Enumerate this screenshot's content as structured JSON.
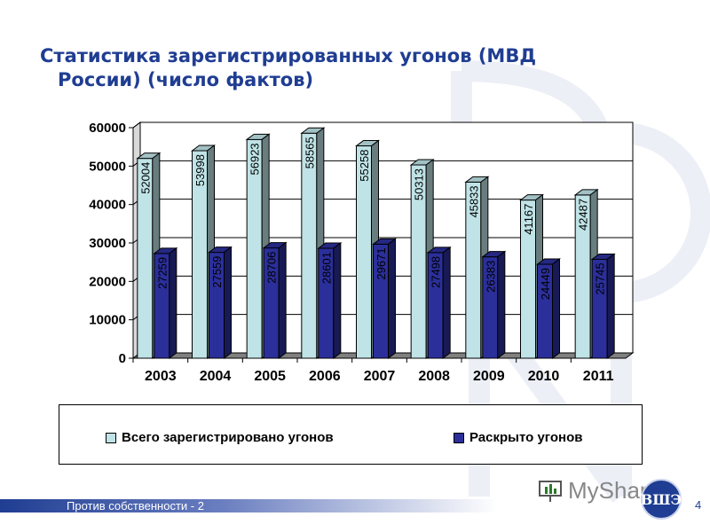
{
  "slide": {
    "title_line1": "Статистика зарегистрированных угонов (МВД",
    "title_line2": "России) (число фактов)",
    "footer": "Против собственности - 2",
    "page_number": "4",
    "brand": "MyShared",
    "emblem_text": "ВШЭ"
  },
  "colors": {
    "title": "#1f3d92",
    "series1": "#bfe3e6",
    "series2": "#2b2f9a",
    "plot_bg": "#ffffff"
  },
  "chart_data": {
    "type": "bar",
    "categories": [
      "2003",
      "2004",
      "2005",
      "2006",
      "2007",
      "2008",
      "2009",
      "2010",
      "2011"
    ],
    "series": [
      {
        "name": "Всего зарегистрировано угонов",
        "values": [
          52004,
          53998,
          56923,
          58565,
          55258,
          50313,
          45833,
          41167,
          42487
        ],
        "labels": [
          "52004",
          "53998",
          "56923",
          "58565",
          "55258",
          "50313",
          "45833",
          "41167",
          "42487"
        ]
      },
      {
        "name": "Раскрыто угонов",
        "values": [
          27259,
          27559,
          28706,
          28601,
          29671,
          27498,
          26383,
          24449,
          25745
        ],
        "labels": [
          "27259",
          "27559",
          "28706",
          "28601",
          "29671",
          "27498",
          "26383",
          "24449",
          "25745"
        ]
      }
    ],
    "ylim": [
      0,
      60000
    ],
    "yticks": [
      "0",
      "10000",
      "20000",
      "30000",
      "40000",
      "50000",
      "60000"
    ],
    "grid": true,
    "legend_position": "bottom"
  }
}
